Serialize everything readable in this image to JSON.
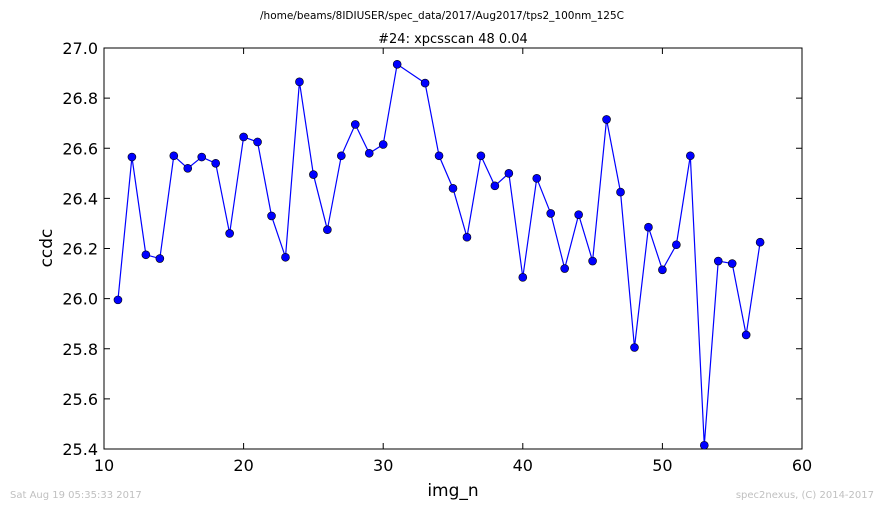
{
  "figure": {
    "suptitle": "/home/beams/8IDIUSER/spec_data/2017/Aug2017/tps2_100nm_125C",
    "footer_left": "Sat Aug 19 05:35:33 2017",
    "footer_right": "spec2nexus, (C) 2014-2017"
  },
  "chart_data": {
    "type": "line",
    "title": "#24: xpcsscan 48 0.04",
    "xlabel": "img_n",
    "ylabel": "ccdc",
    "xlim": [
      10,
      60
    ],
    "ylim": [
      25.4,
      27.0
    ],
    "xticks": [
      10,
      20,
      30,
      40,
      50,
      60
    ],
    "yticks": [
      25.4,
      25.6,
      25.8,
      26.0,
      26.2,
      26.4,
      26.6,
      26.8,
      27.0
    ],
    "xtick_labels": [
      "10",
      "20",
      "30",
      "40",
      "50",
      "60"
    ],
    "ytick_labels": [
      "25.4",
      "25.6",
      "25.8",
      "26.0",
      "26.2",
      "26.4",
      "26.6",
      "26.8",
      "27.0"
    ],
    "grid": false,
    "line_color": "#0000ff",
    "marker": "circle",
    "x": [
      11,
      12,
      13,
      14,
      15,
      16,
      17,
      18,
      19,
      20,
      21,
      22,
      23,
      24,
      25,
      26,
      27,
      28,
      29,
      30,
      31,
      33,
      34,
      35,
      36,
      37,
      38,
      39,
      40,
      41,
      42,
      43,
      44,
      45,
      46,
      47,
      48,
      49,
      50,
      51,
      52,
      53,
      54,
      55,
      56,
      57
    ],
    "y": [
      25.995,
      26.565,
      26.175,
      26.16,
      26.57,
      26.52,
      26.565,
      26.54,
      26.26,
      26.645,
      26.625,
      26.33,
      26.165,
      26.865,
      26.495,
      26.275,
      26.57,
      26.695,
      26.58,
      26.615,
      26.935,
      26.86,
      26.57,
      26.44,
      26.245,
      26.57,
      26.45,
      26.5,
      26.085,
      26.48,
      26.34,
      26.12,
      26.335,
      26.15,
      26.715,
      26.425,
      25.805,
      26.285,
      26.115,
      26.215,
      26.57,
      25.415,
      26.15,
      26.14,
      25.855,
      26.225
    ]
  }
}
